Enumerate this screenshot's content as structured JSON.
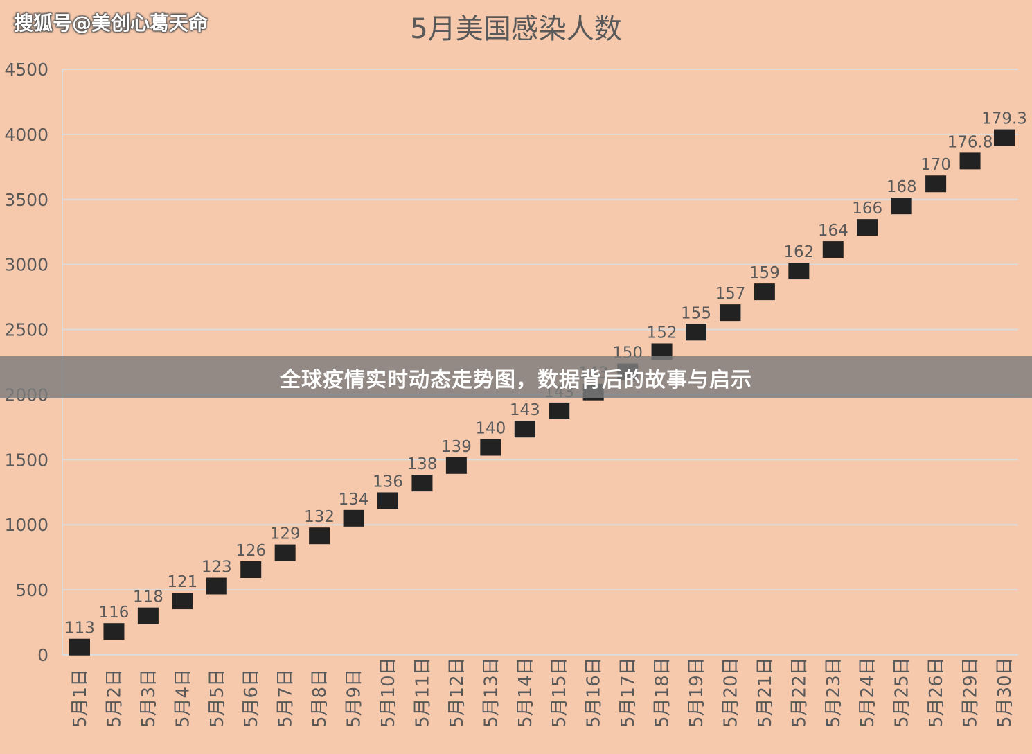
{
  "watermark": "搜狐号@美创心葛天命",
  "banner": "全球疫情实时动态走势图，数据背后的故事与启示",
  "chart_data": {
    "type": "scatter",
    "title": "5月美国感染人数",
    "xlabel": "",
    "ylabel": "",
    "ylim": [
      0,
      4500
    ],
    "yticks": [
      0,
      500,
      1000,
      1500,
      2000,
      2500,
      3000,
      3500,
      4000,
      4500
    ],
    "grid": true,
    "legend": "none",
    "categories": [
      "5月1日",
      "5月2日",
      "5月3日",
      "5月4日",
      "5月5日",
      "5月6日",
      "5月7日",
      "5月8日",
      "5月9日",
      "5月10日",
      "5月11日",
      "5月12日",
      "5月13日",
      "5月14日",
      "5月15日",
      "5月16日",
      "5月17日",
      "5月18日",
      "5月19日",
      "5月20日",
      "5月21日",
      "5月22日",
      "5月23日",
      "5月24日",
      "5月25日",
      "5月26日",
      "5月29日",
      "5月30日"
    ],
    "values": [
      60,
      180,
      300,
      415,
      530,
      655,
      785,
      915,
      1050,
      1185,
      1320,
      1455,
      1595,
      1735,
      1875,
      2020,
      2175,
      2330,
      2480,
      2630,
      2790,
      2950,
      3115,
      3285,
      3450,
      3620,
      3795,
      3975
    ],
    "data_labels": [
      "113",
      "116",
      "118",
      "121",
      "123",
      "126",
      "129",
      "132",
      "134",
      "136",
      "138",
      "139",
      "140",
      "143",
      "143",
      "143",
      "150",
      "152",
      "155",
      "157",
      "159",
      "162",
      "164",
      "166",
      "168",
      "170",
      "176.8",
      "179.3"
    ],
    "colors": {
      "background": "#f6c9ad",
      "marker": "#222222",
      "grid": "#dcdcdc",
      "axis_text": "#595959",
      "title": "#595959"
    }
  }
}
